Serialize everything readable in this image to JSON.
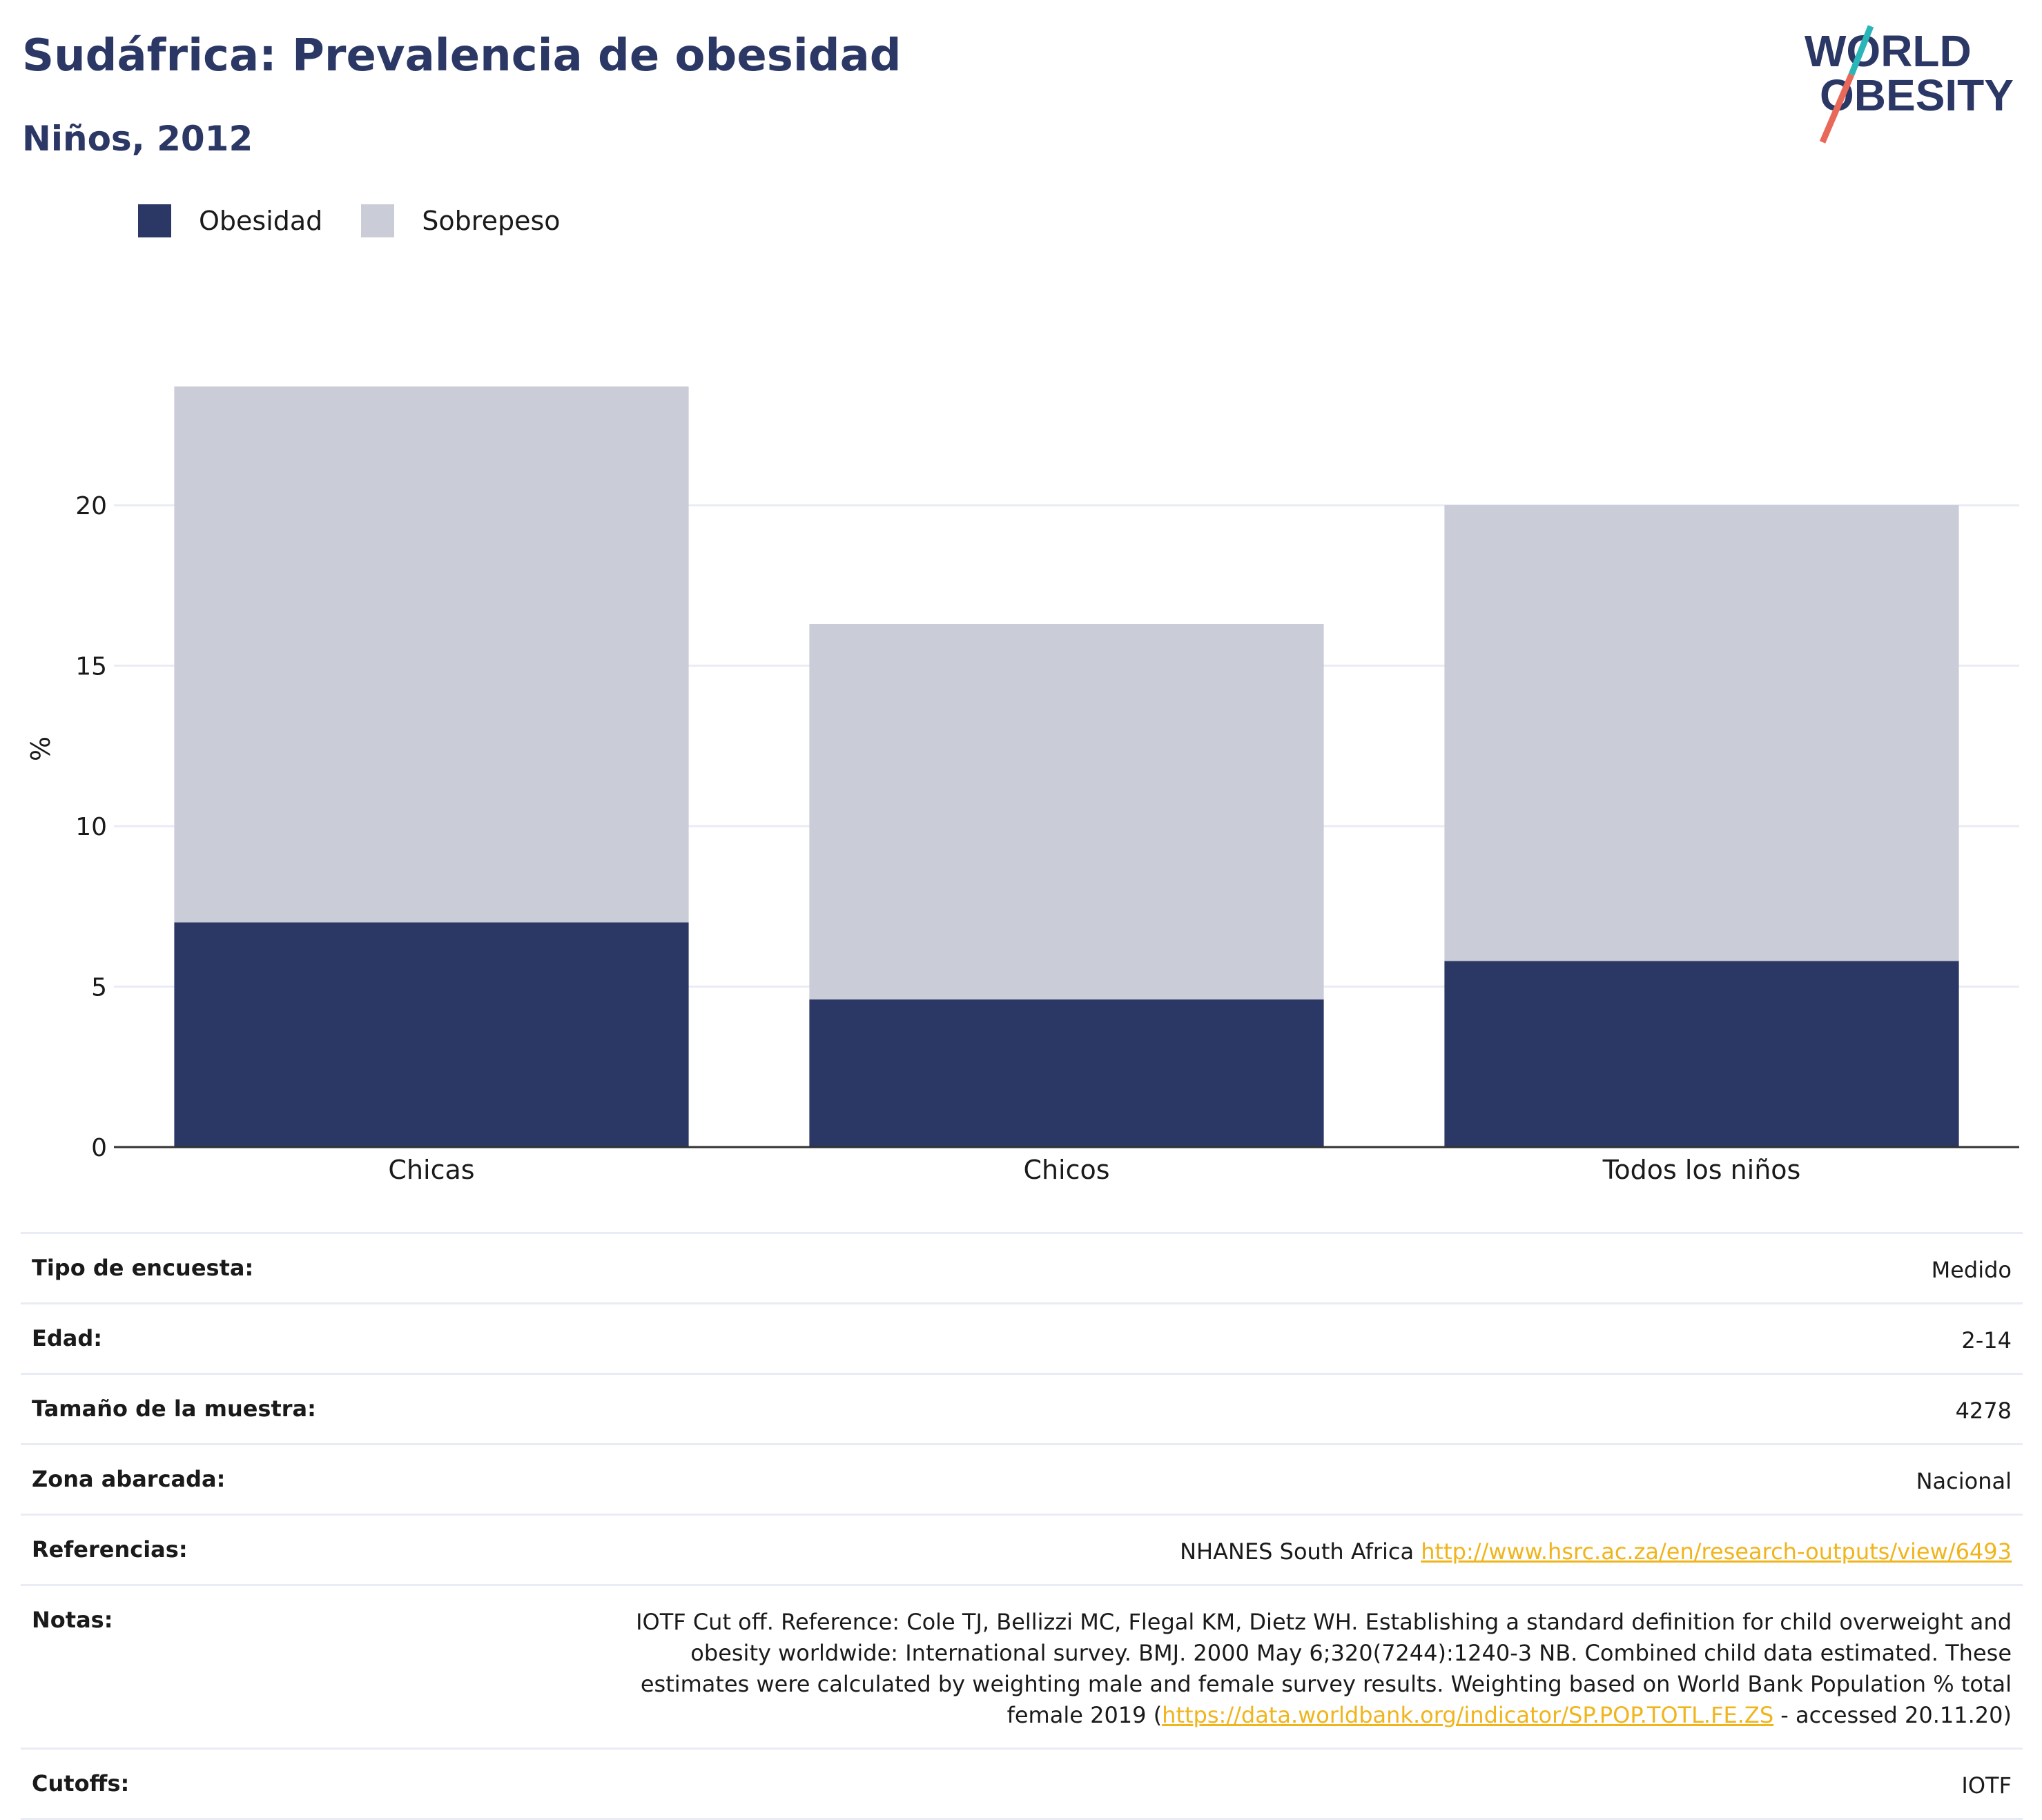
{
  "header": {
    "title": "Sudáfrica: Prevalencia de obesidad",
    "subtitle": "Niños, 2012"
  },
  "logo": {
    "line1": "WORLD",
    "line2": "OBESITY"
  },
  "colors": {
    "obesity": "#2b3764",
    "overweight": "#caccd8",
    "grid": "#e9ecf5",
    "axis": "#333333",
    "accent_teal": "#2ab5b8",
    "accent_coral": "#e8685a",
    "link": "#f0b41c"
  },
  "chart_data": {
    "type": "bar",
    "stacked": true,
    "title": "Sudáfrica: Prevalencia de obesidad",
    "subtitle": "Niños, 2012",
    "categories": [
      "Chicas",
      "Chicos",
      "Todos los niños"
    ],
    "series": [
      {
        "name": "Obesidad",
        "values": [
          7.0,
          4.6,
          5.8
        ]
      },
      {
        "name": "Sobrepeso",
        "values": [
          16.7,
          11.7,
          14.2
        ]
      }
    ],
    "xlabel": "",
    "ylabel": "%",
    "ylim": [
      0,
      24
    ],
    "yticks": [
      0,
      5,
      10,
      15,
      20
    ],
    "ytick_labels": [
      "0",
      "5",
      "10",
      "15",
      "20"
    ],
    "grid": true,
    "legend_position": "top-left"
  },
  "details": [
    {
      "key": "Tipo de encuesta:",
      "value": "Medido"
    },
    {
      "key": "Edad:",
      "value": "2-14"
    },
    {
      "key": "Tamaño de la muestra:",
      "value": "4278"
    },
    {
      "key": "Zona abarcada:",
      "value": "Nacional"
    },
    {
      "key": "Referencias:",
      "value": "NHANES South Africa ",
      "link": "http://www.hsrc.ac.za/en/research-outputs/view/6493"
    },
    {
      "key": "Notas:",
      "value": "IOTF Cut off. Reference: Cole TJ, Bellizzi MC, Flegal KM, Dietz WH. Establishing a standard definition for child overweight and obesity worldwide: International survey. BMJ. 2000 May 6;320(7244):1240-3 NB. Combined child data estimated. These estimates were calculated by weighting male and female survey results. Weighting based on World Bank Population % total female 2019 (",
      "link": "https://data.worldbank.org/indicator/SP.POP.TOTL.FE.ZS",
      "suffix": " - accessed 20.11.20)"
    },
    {
      "key": "Cutoffs:",
      "value": "IOTF"
    }
  ]
}
